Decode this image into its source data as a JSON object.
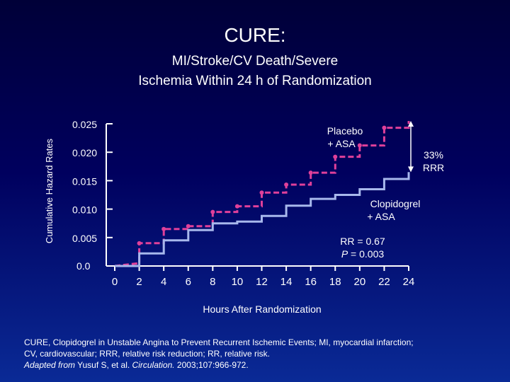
{
  "title": "CURE:",
  "subtitle_line1": "MI/Stroke/CV Death/Severe",
  "subtitle_line2": "Ischemia Within 24 h of Randomization",
  "chart_data": {
    "type": "line",
    "step": true,
    "ylabel": "Cumulative Hazard Rates",
    "xlabel": "Hours After Randomization",
    "x_ticks": [
      0,
      2,
      4,
      6,
      8,
      10,
      12,
      14,
      16,
      18,
      20,
      22,
      24
    ],
    "y_ticks": [
      {
        "value": 0.0,
        "label": "0.0"
      },
      {
        "value": 0.005,
        "label": "0.005"
      },
      {
        "value": 0.01,
        "label": "0.010"
      },
      {
        "value": 0.015,
        "label": "0.015"
      },
      {
        "value": 0.02,
        "label": "0.020"
      },
      {
        "value": 0.025,
        "label": "0.025"
      }
    ],
    "xlim": [
      0,
      24
    ],
    "ylim": [
      0,
      0.025
    ],
    "series": [
      {
        "name_lines": [
          "Placebo",
          "+ ASA"
        ],
        "color": "#e0409a",
        "style": "dashed",
        "points": [
          [
            0,
            0.0
          ],
          [
            2,
            0.0005
          ],
          [
            2,
            0.004
          ],
          [
            4,
            0.004
          ],
          [
            4,
            0.0065
          ],
          [
            6,
            0.0065
          ],
          [
            6,
            0.007
          ],
          [
            8,
            0.007
          ],
          [
            8,
            0.0095
          ],
          [
            10,
            0.0095
          ],
          [
            10,
            0.0105
          ],
          [
            12,
            0.0105
          ],
          [
            12,
            0.0129
          ],
          [
            14,
            0.0129
          ],
          [
            14,
            0.0143
          ],
          [
            16,
            0.0143
          ],
          [
            16,
            0.0164
          ],
          [
            18,
            0.0164
          ],
          [
            18,
            0.0192
          ],
          [
            20,
            0.0192
          ],
          [
            20,
            0.0212
          ],
          [
            22,
            0.0212
          ],
          [
            22,
            0.0243
          ],
          [
            24,
            0.0243
          ],
          [
            24,
            0.0255
          ]
        ]
      },
      {
        "name_lines": [
          "Clopidogrel",
          "+ ASA"
        ],
        "color": "#a8b8ec",
        "style": "solid",
        "points": [
          [
            0,
            0.0
          ],
          [
            2,
            0.0
          ],
          [
            2,
            0.0022
          ],
          [
            4,
            0.0022
          ],
          [
            4,
            0.0045
          ],
          [
            6,
            0.0045
          ],
          [
            6,
            0.0063
          ],
          [
            8,
            0.0063
          ],
          [
            8,
            0.0075
          ],
          [
            10,
            0.0075
          ],
          [
            10,
            0.0078
          ],
          [
            12,
            0.0078
          ],
          [
            12,
            0.0088
          ],
          [
            14,
            0.0088
          ],
          [
            14,
            0.0106
          ],
          [
            16,
            0.0106
          ],
          [
            16,
            0.0118
          ],
          [
            18,
            0.0118
          ],
          [
            18,
            0.0125
          ],
          [
            20,
            0.0125
          ],
          [
            20,
            0.0135
          ],
          [
            22,
            0.0135
          ],
          [
            22,
            0.0153
          ],
          [
            24,
            0.0153
          ],
          [
            24,
            0.0165
          ]
        ]
      }
    ],
    "annotation_rrr_lines": [
      "33%",
      "RRR"
    ],
    "annotation_rr": "RR = 0.67",
    "annotation_p_label": "P",
    "annotation_p_value": " = 0.003"
  },
  "footer": {
    "line1": "CURE, Clopidogrel in Unstable Angina to Prevent Recurrent Ischemic Events; MI, myocardial infarction;",
    "line2": "CV, cardiovascular; RRR, relative risk reduction; RR, relative risk.",
    "adapted": "Adapted from",
    "citation_authors": " Yusuf S, et al. ",
    "journal": "Circulation.",
    "citation_tail": " 2003;107:966-972."
  },
  "colors": {
    "background_top": "#000038",
    "background_bottom": "#0a2a96",
    "placebo": "#e0409a",
    "clopidogrel": "#a8b8ec",
    "axis": "#ffffff"
  }
}
